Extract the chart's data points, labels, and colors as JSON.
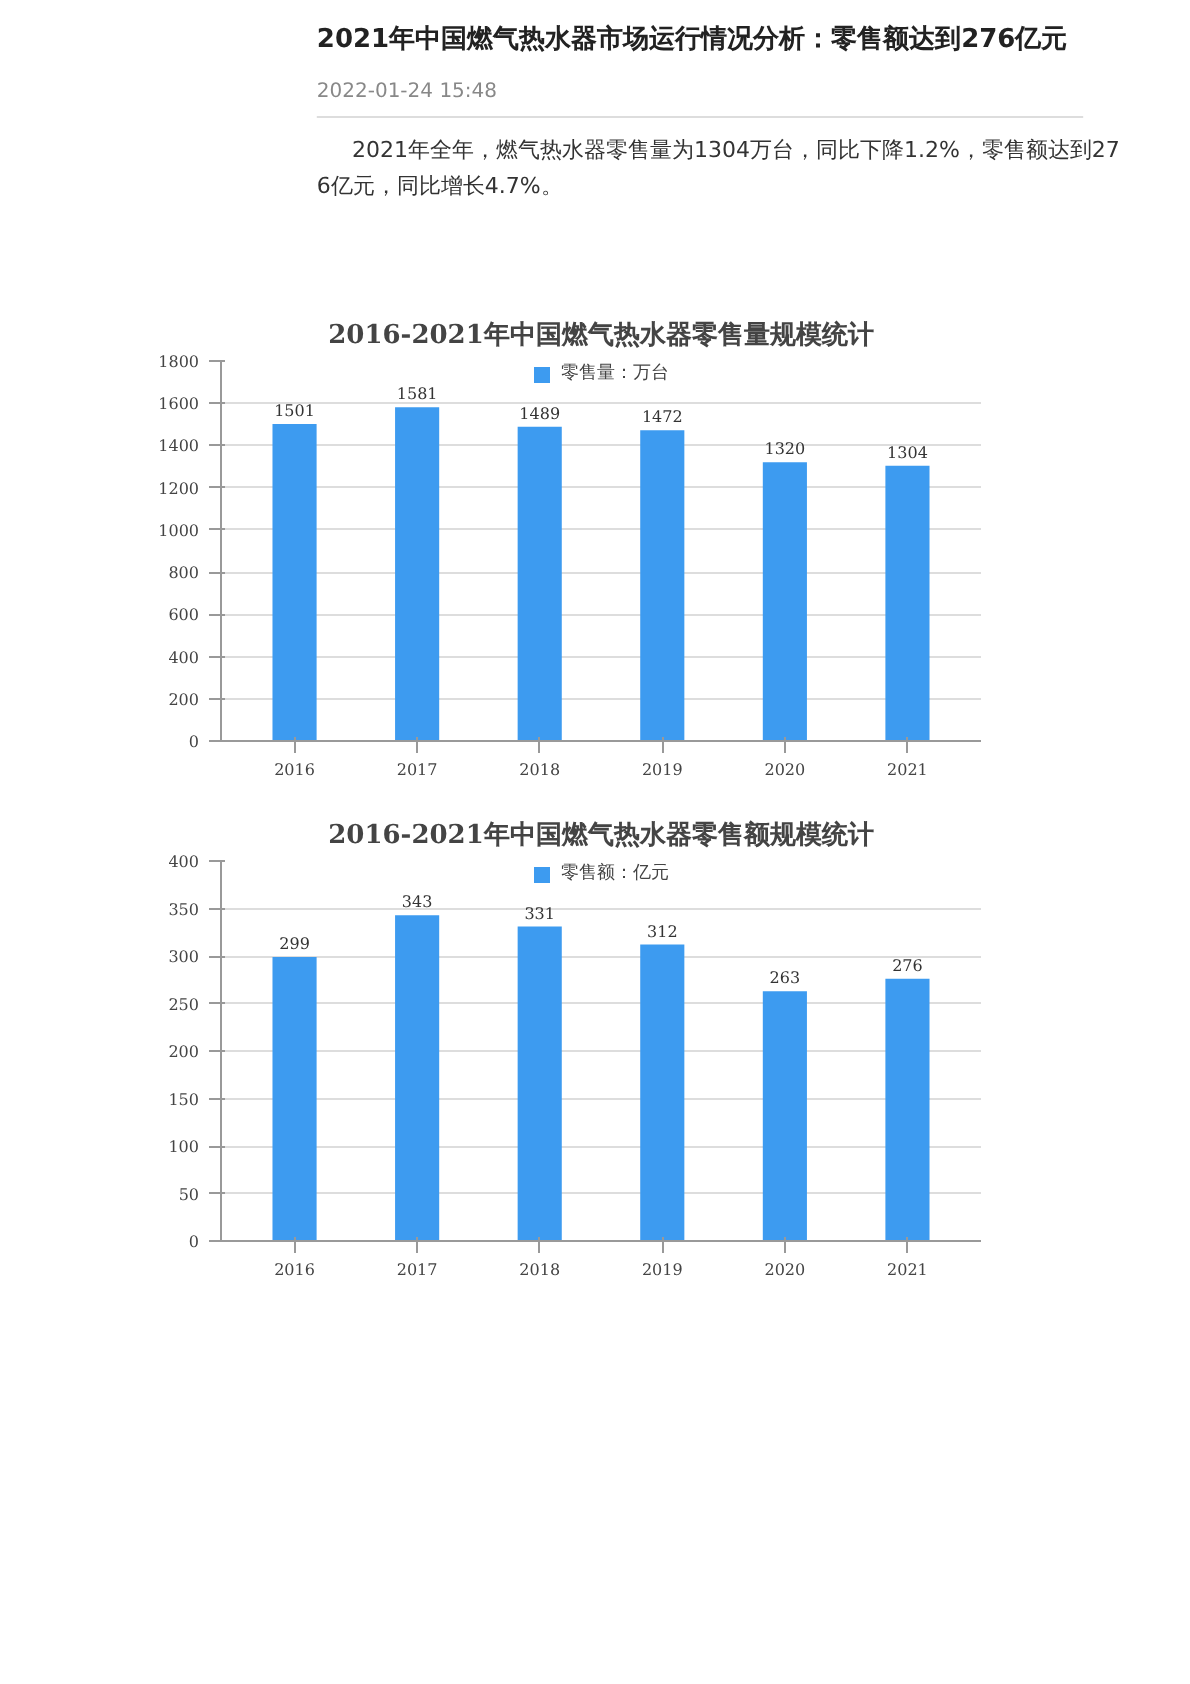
{
  "chart_data": [
    {
      "type": "other",
      "title": "2021年中国燃气热水器市场运行情况分析：零售额达到276亿元",
      "annotations": [
        "2022-01-24 15:48",
        "2021年全年，燃气热水器零售量为1304万台，同比下降1.2%，零售额达到276亿元，同比增长4.7%。"
      ]
    },
    {
      "type": "bar",
      "title": "2016-2021年中国燃气热水器零售量规模统计",
      "categories": [
        "2016",
        "2017",
        "2018",
        "2019",
        "2020",
        "2021"
      ],
      "series": [
        {
          "name": "零售量：万台",
          "color": "#3d9bf0",
          "values": [
            1501,
            1581,
            1489,
            1472,
            1320,
            1304
          ]
        }
      ],
      "ylim": [
        0,
        1800
      ],
      "yticks": [
        0,
        200,
        400,
        600,
        800,
        1000,
        1200,
        1400,
        1600,
        1800
      ],
      "grid": "y",
      "legend": "top",
      "data_labels": true
    },
    {
      "type": "bar",
      "title": "2016-2021年中国燃气热水器零售额规模统计",
      "categories": [
        "2016",
        "2017",
        "2018",
        "2019",
        "2020",
        "2021"
      ],
      "series": [
        {
          "name": "零售额：亿元",
          "color": "#3d9bf0",
          "values": [
            299,
            343,
            331,
            312,
            263,
            276
          ]
        }
      ],
      "ylim": [
        0,
        400
      ],
      "yticks": [
        0,
        50,
        100,
        150,
        200,
        250,
        300,
        350,
        400
      ],
      "grid": "y",
      "legend": "top",
      "data_labels": true
    }
  ]
}
